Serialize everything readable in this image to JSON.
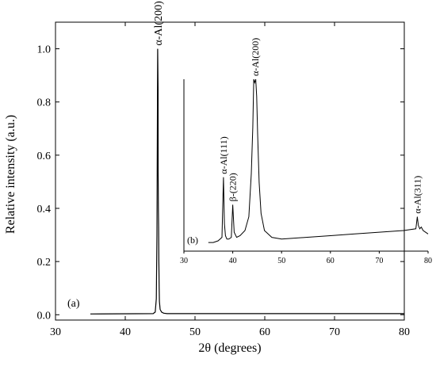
{
  "chart_data": [
    {
      "type": "line",
      "panel_label": "(a)",
      "xlabel": "2θ (degrees)",
      "ylabel": "Relative intensity (a.u.)",
      "xlim": [
        30,
        80
      ],
      "ylim": [
        -0.02,
        1.1
      ],
      "x_ticks": [
        30,
        40,
        50,
        60,
        70,
        80
      ],
      "y_ticks": [
        0.0,
        0.2,
        0.4,
        0.6,
        0.8,
        1.0
      ],
      "y_tick_labels": [
        "0.0",
        "0.2",
        "0.4",
        "0.6",
        "0.8",
        "1.0"
      ],
      "grid": false,
      "series": [
        {
          "x": [
            35,
            44.0,
            44.3,
            44.45,
            44.55,
            44.6,
            44.65,
            44.7,
            44.72,
            44.75,
            44.78,
            44.82,
            44.86,
            44.9,
            45.0,
            45.2,
            45.5,
            46.0,
            50,
            60,
            70,
            80
          ],
          "y": [
            0.003,
            0.004,
            0.01,
            0.06,
            0.3,
            0.7,
            1.0,
            0.85,
            0.54,
            0.4,
            0.33,
            0.2,
            0.1,
            0.05,
            0.02,
            0.01,
            0.006,
            0.004,
            0.004,
            0.004,
            0.004,
            0.004
          ]
        }
      ],
      "annotations": [
        {
          "text": "α-Al(200)",
          "x": 44.65,
          "y": 1.0
        }
      ]
    },
    {
      "type": "line",
      "panel_label": "(b)",
      "xlim": [
        30,
        80
      ],
      "x_ticks": [
        30,
        40,
        50,
        60,
        70,
        80
      ],
      "ylim": [
        0,
        1
      ],
      "series": [
        {
          "x": [
            35,
            36,
            37,
            37.8,
            38.1,
            38.3,
            38.5,
            38.8,
            39.2,
            39.7,
            40.0,
            40.3,
            40.8,
            41.5,
            42.5,
            43.3,
            43.8,
            44.1,
            44.3,
            44.5,
            44.7,
            44.9,
            45.1,
            45.4,
            45.8,
            46.5,
            48,
            50,
            55,
            60,
            65,
            70,
            75,
            77.5,
            77.8,
            78.0,
            78.3,
            78.6,
            79,
            80
          ],
          "y": [
            0.05,
            0.05,
            0.06,
            0.08,
            0.43,
            0.16,
            0.09,
            0.07,
            0.07,
            0.08,
            0.27,
            0.11,
            0.08,
            0.09,
            0.12,
            0.2,
            0.45,
            0.72,
            1.0,
            0.98,
            1.0,
            0.9,
            0.68,
            0.4,
            0.22,
            0.12,
            0.08,
            0.07,
            0.08,
            0.09,
            0.1,
            0.11,
            0.12,
            0.13,
            0.2,
            0.15,
            0.13,
            0.14,
            0.12,
            0.1
          ]
        }
      ],
      "annotations": [
        {
          "text": "α-Al(111)",
          "x": 38.1,
          "y": 0.43
        },
        {
          "text": "β-(220)",
          "x": 40.0,
          "y": 0.27
        },
        {
          "text": "α-Al(200)",
          "x": 44.6,
          "y": 1.0
        },
        {
          "text": "α-Al(311)",
          "x": 77.8,
          "y": 0.2
        }
      ]
    }
  ]
}
